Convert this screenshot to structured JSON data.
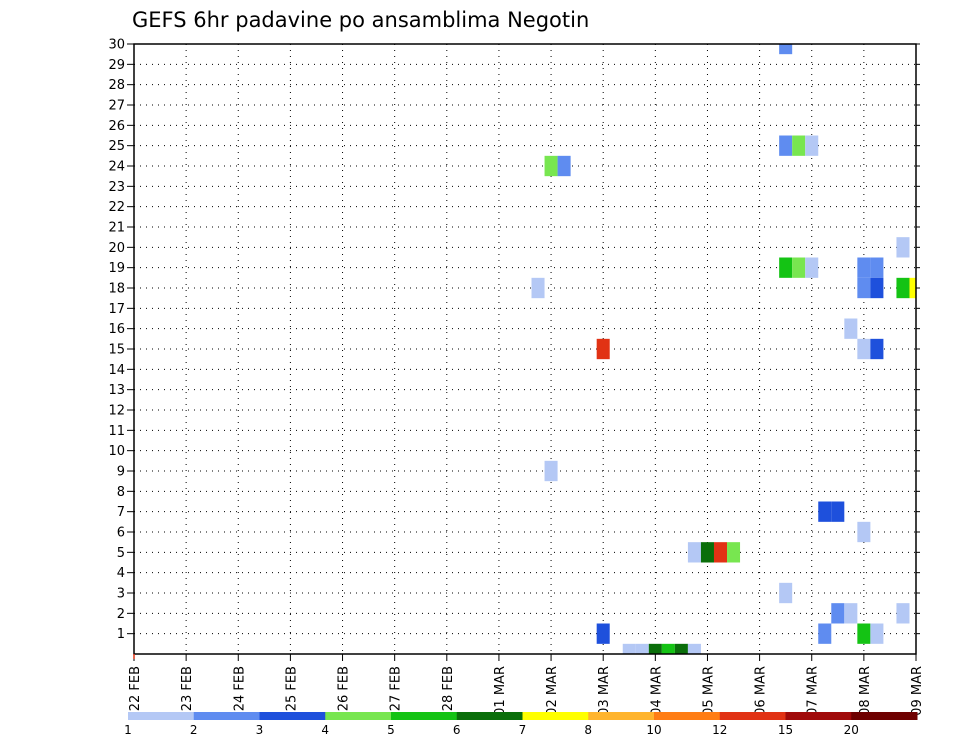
{
  "title": "GEFS 6hr padavine po ansamblima Negotin",
  "chart_data": {
    "type": "heatmap",
    "title": "GEFS 6hr padavine po ansamblima Negotin",
    "x_tick_labels": [
      "22 FEB",
      "23 FEB",
      "24 FEB",
      "25 FEB",
      "26 FEB",
      "27 FEB",
      "28 FEB",
      "01 MAR",
      "02 MAR",
      "03 MAR",
      "04 MAR",
      "05 MAR",
      "06 MAR",
      "07 MAR",
      "08 MAR",
      "09 MAR"
    ],
    "x_range_steps": [
      0,
      60
    ],
    "y_ticks": [
      1,
      2,
      3,
      4,
      5,
      6,
      7,
      8,
      9,
      10,
      11,
      12,
      13,
      14,
      15,
      16,
      17,
      18,
      19,
      20,
      21,
      22,
      23,
      24,
      25,
      26,
      27,
      28,
      29,
      30
    ],
    "y_range": [
      0,
      30
    ],
    "grid": true,
    "colorbar": {
      "labels": [
        "1",
        "2",
        "3",
        "4",
        "5",
        "6",
        "7",
        "8",
        "10",
        "12",
        "15",
        "20"
      ],
      "colors": [
        "#b4c8f5",
        "#5f8cf0",
        "#1e50dc",
        "#78e650",
        "#14c314",
        "#0a6e0a",
        "#ffff00",
        "#ffb42d",
        "#ff7d14",
        "#e13214",
        "#a00a0a",
        "#6e0000"
      ]
    },
    "cells": [
      {
        "step": 50,
        "member": 30,
        "color": "#5f8cf0"
      },
      {
        "step": 50,
        "member": 25,
        "color": "#5f8cf0"
      },
      {
        "step": 51,
        "member": 25,
        "color": "#78e650"
      },
      {
        "step": 52,
        "member": 25,
        "color": "#b4c8f5"
      },
      {
        "step": 32,
        "member": 24,
        "color": "#78e650"
      },
      {
        "step": 33,
        "member": 24,
        "color": "#5f8cf0"
      },
      {
        "step": 59,
        "member": 20,
        "color": "#b4c8f5"
      },
      {
        "step": 50,
        "member": 19,
        "color": "#14c314"
      },
      {
        "step": 51,
        "member": 19,
        "color": "#78e650"
      },
      {
        "step": 52,
        "member": 19,
        "color": "#b4c8f5"
      },
      {
        "step": 56,
        "member": 19,
        "color": "#5f8cf0"
      },
      {
        "step": 57,
        "member": 19,
        "color": "#5f8cf0"
      },
      {
        "step": 31,
        "member": 18,
        "color": "#b4c8f5"
      },
      {
        "step": 56,
        "member": 18,
        "color": "#5f8cf0"
      },
      {
        "step": 57,
        "member": 18,
        "color": "#1e50dc"
      },
      {
        "step": 59,
        "member": 18,
        "color": "#14c314"
      },
      {
        "step": 60,
        "member": 18,
        "color": "#ffff00"
      },
      {
        "step": 55,
        "member": 16,
        "color": "#b4c8f5"
      },
      {
        "step": 36,
        "member": 15,
        "color": "#e13214"
      },
      {
        "step": 56,
        "member": 15,
        "color": "#b4c8f5"
      },
      {
        "step": 57,
        "member": 15,
        "color": "#1e50dc"
      },
      {
        "step": 32,
        "member": 9,
        "color": "#b4c8f5"
      },
      {
        "step": 53,
        "member": 7,
        "color": "#1e50dc"
      },
      {
        "step": 54,
        "member": 7,
        "color": "#1e50dc"
      },
      {
        "step": 56,
        "member": 6,
        "color": "#b4c8f5"
      },
      {
        "step": 43,
        "member": 5,
        "color": "#b4c8f5"
      },
      {
        "step": 44,
        "member": 5,
        "color": "#0a6e0a"
      },
      {
        "step": 45,
        "member": 5,
        "color": "#e13214"
      },
      {
        "step": 46,
        "member": 5,
        "color": "#78e650"
      },
      {
        "step": 50,
        "member": 3,
        "color": "#b4c8f5"
      },
      {
        "step": 54,
        "member": 2,
        "color": "#5f8cf0"
      },
      {
        "step": 55,
        "member": 2,
        "color": "#b4c8f5"
      },
      {
        "step": 59,
        "member": 2,
        "color": "#b4c8f5"
      },
      {
        "step": 36,
        "member": 1,
        "color": "#1e50dc"
      },
      {
        "step": 53,
        "member": 1,
        "color": "#5f8cf0"
      },
      {
        "step": 56,
        "member": 1,
        "color": "#14c314"
      },
      {
        "step": 57,
        "member": 1,
        "color": "#b4c8f5"
      },
      {
        "step": 38,
        "member": 0,
        "color": "#b4c8f5"
      },
      {
        "step": 39,
        "member": 0,
        "color": "#b4c8f5"
      },
      {
        "step": 40,
        "member": 0,
        "color": "#0a6e0a"
      },
      {
        "step": 41,
        "member": 0,
        "color": "#14c314"
      },
      {
        "step": 42,
        "member": 0,
        "color": "#0a6e0a"
      },
      {
        "step": 43,
        "member": 0,
        "color": "#b4c8f5"
      }
    ]
  }
}
